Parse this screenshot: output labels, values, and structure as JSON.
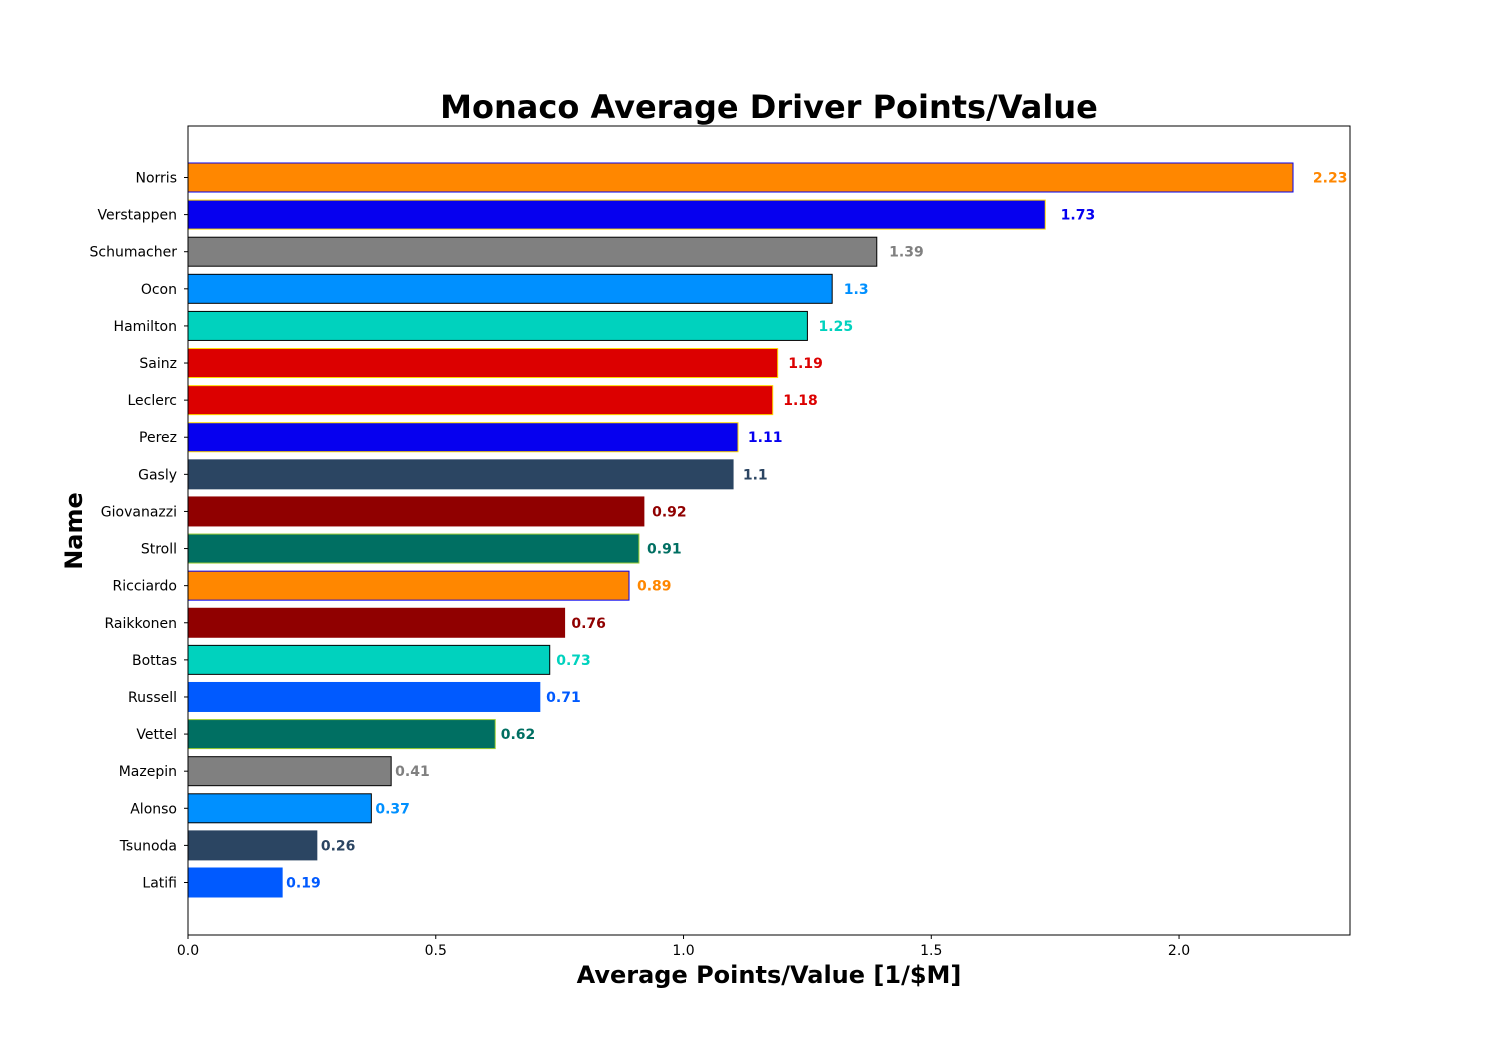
{
  "chart_data": {
    "type": "bar",
    "orientation": "horizontal",
    "title": "Monaco Average Driver Points/Value",
    "xlabel": "Average Points/Value [1/$M]",
    "ylabel": "Name",
    "xlim": [
      0,
      2.345
    ],
    "xticks": [
      "0.0",
      "0.5",
      "1.0",
      "1.5",
      "2.0"
    ],
    "grid": false,
    "categories": [
      "Norris",
      "Verstappen",
      "Schumacher",
      "Ocon",
      "Hamilton",
      "Sainz",
      "Leclerc",
      "Perez",
      "Gasly",
      "Giovanazzi",
      "Stroll",
      "Ricciardo",
      "Raikkonen",
      "Bottas",
      "Russell",
      "Vettel",
      "Mazepin",
      "Alonso",
      "Tsunoda",
      "Latifi"
    ],
    "values": [
      2.23,
      1.73,
      1.39,
      1.3,
      1.25,
      1.19,
      1.18,
      1.11,
      1.1,
      0.92,
      0.91,
      0.89,
      0.76,
      0.73,
      0.71,
      0.62,
      0.41,
      0.37,
      0.26,
      0.19
    ],
    "value_labels": [
      "2.23",
      "1.73",
      "1.39",
      "1.3",
      "1.25",
      "1.19",
      "1.18",
      "1.11",
      "1.1",
      "0.92",
      "0.91",
      "0.89",
      "0.76",
      "0.73",
      "0.71",
      "0.62",
      "0.41",
      "0.37",
      "0.26",
      "0.19"
    ],
    "bar_colors": [
      "#FF8700",
      "#0600EF",
      "#808080",
      "#0090FF",
      "#00D2BE",
      "#DC0000",
      "#DC0000",
      "#0600EF",
      "#2B4562",
      "#900000",
      "#006F62",
      "#FF8700",
      "#900000",
      "#00D2BE",
      "#005AFF",
      "#006F62",
      "#808080",
      "#0090FF",
      "#2B4562",
      "#005AFF"
    ],
    "edge_colors": [
      "#0600EF",
      "#FFD800",
      "#000000",
      "#000000",
      "#000000",
      "#FFD800",
      "#FFD800",
      "#FFD800",
      "#2B4562",
      "#900000",
      "#9ACD32",
      "#0600EF",
      "#900000",
      "#000000",
      "#005AFF",
      "#9ACD32",
      "#000000",
      "#000000",
      "#2B4562",
      "#005AFF"
    ]
  }
}
